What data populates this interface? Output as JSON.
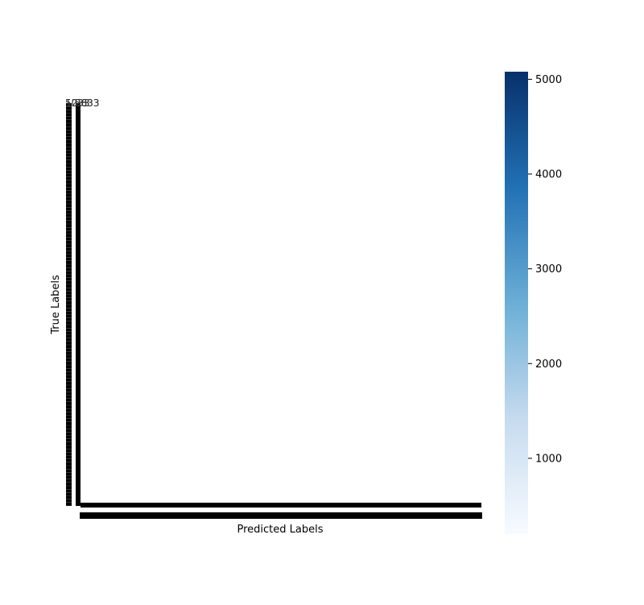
{
  "chart_data": {
    "type": "heatmap",
    "title": "",
    "xlabel": "Predicted Labels",
    "ylabel": "True Labels",
    "cmap": "Blues",
    "colors": {
      "low": "#f7fbff",
      "mid_low": "#c6dbef",
      "mid": "#6baed6",
      "mid_high": "#2171b5",
      "high": "#08306b",
      "tick_mark_fill": "#000000"
    },
    "colorbar": {
      "vmin": 200,
      "vmax": 5080,
      "ticks": [
        1000,
        2000,
        3000,
        4000,
        5000
      ],
      "tick_labels": [
        "1000",
        "2000",
        "3000",
        "4000",
        "5000"
      ]
    },
    "cell_annotations": [
      {
        "text": "5033",
        "row": 0,
        "col": 0
      },
      {
        "text": "1233",
        "row": 0,
        "col": 0
      },
      {
        "text": "2633",
        "row": 0,
        "col": 1
      },
      {
        "text": "5833",
        "row": 0,
        "col": 1
      }
    ],
    "num_categories": 120,
    "note_visible": "tick labels rendered as overlapping solid black bars"
  }
}
